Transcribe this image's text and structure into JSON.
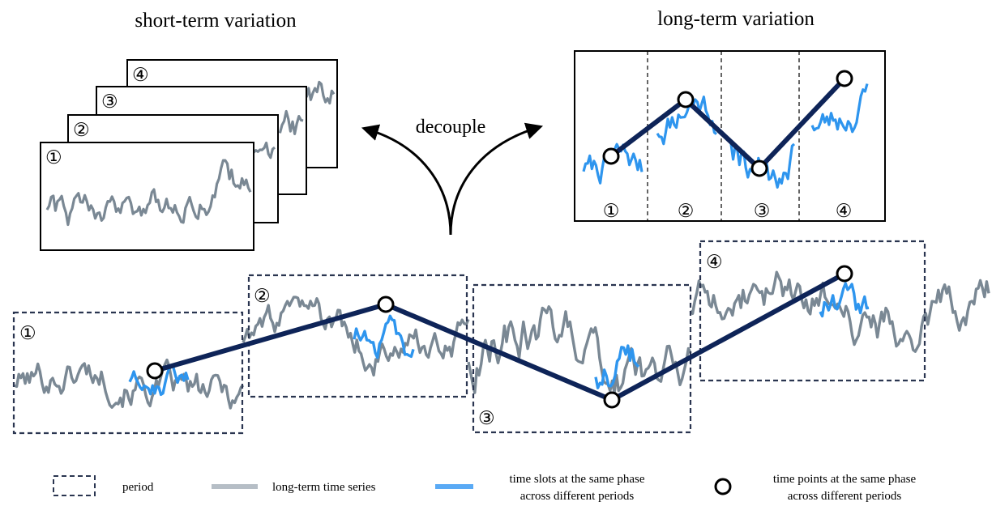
{
  "titles": {
    "short_term": "short-term variation",
    "long_term": "long-term variation",
    "decouple": "decouple"
  },
  "period_labels": [
    "①",
    "②",
    "③",
    "④"
  ],
  "legend": {
    "period": "period",
    "long_series": "long-term time series",
    "same_phase_slots_line1": "time slots at the same phase",
    "same_phase_slots_line2": "across different periods",
    "same_phase_points_line1": "time points at the same phase",
    "same_phase_points_line2": "across different periods"
  },
  "colors": {
    "series_gray": "#7a8894",
    "phase_blue": "#2e95ee",
    "phase_line": "#0e2458",
    "box_dash": "#2a3550",
    "legend_gray": "#b6bec6",
    "legend_blue": "#5aaaf5"
  }
}
